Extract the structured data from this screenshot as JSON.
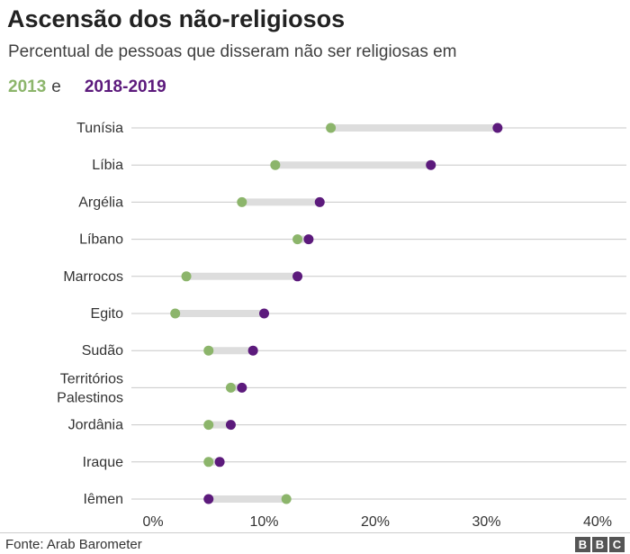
{
  "header": {
    "title": "Ascensão dos não-religiosos",
    "subtitle": "Percentual de pessoas que disseram não ser religiosas em",
    "legend_conjunction": "e"
  },
  "colors": {
    "y2013": "#8cb56b",
    "y2018": "#5c1a7c",
    "connector": "#dddddd",
    "gridline": "#c8c8c8"
  },
  "chart_data": {
    "type": "dumbbell",
    "title": "Ascensão dos não-religiosos",
    "subtitle": "Percentual de pessoas que disseram não ser religiosas em",
    "x_axis": {
      "min": 0,
      "max": 40,
      "ticks": [
        0,
        10,
        20,
        30,
        40
      ],
      "tick_labels": [
        "0%",
        "10%",
        "20%",
        "30%",
        "40%"
      ]
    },
    "legend": [
      {
        "name": "2013",
        "color": "#8cb56b"
      },
      {
        "name": "2018-2019",
        "color": "#5c1a7c"
      }
    ],
    "categories": [
      [
        "Tunísia"
      ],
      [
        "Líbia"
      ],
      [
        "Argélia"
      ],
      [
        "Líbano"
      ],
      [
        "Marrocos"
      ],
      [
        "Egito"
      ],
      [
        "Sudão"
      ],
      [
        "Territórios",
        "Palestinos"
      ],
      [
        "Jordânia"
      ],
      [
        "Iraque"
      ],
      [
        "Iêmen"
      ]
    ],
    "series": [
      {
        "name": "2013",
        "values": [
          16,
          11,
          8,
          13,
          3,
          2,
          5,
          7,
          5,
          5,
          12
        ]
      },
      {
        "name": "2018-2019",
        "values": [
          31,
          25,
          15,
          14,
          13,
          10,
          9,
          8,
          7,
          6,
          5
        ]
      }
    ],
    "grid": true
  },
  "footer": {
    "source": "Fonte: Arab Barometer",
    "logo": [
      "B",
      "B",
      "C"
    ]
  }
}
